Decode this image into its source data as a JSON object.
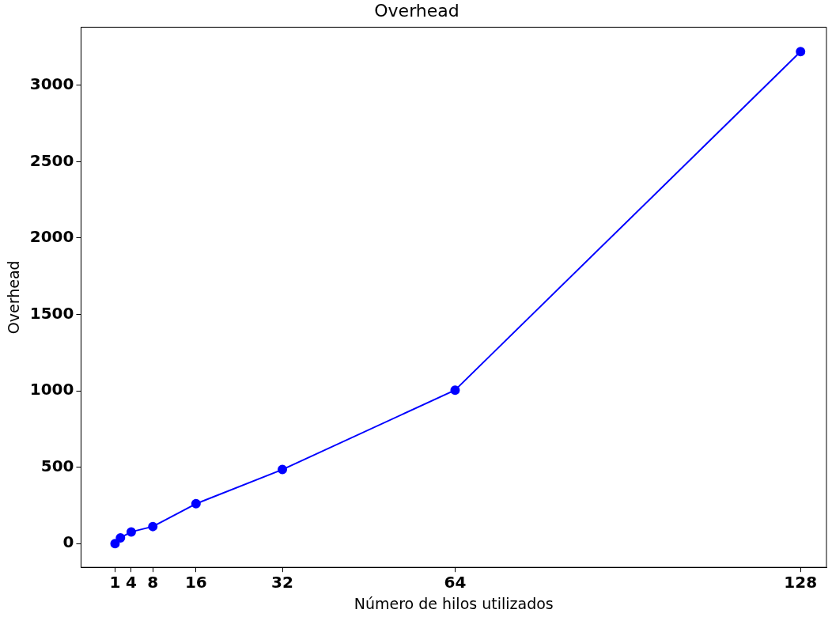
{
  "chart_data": {
    "type": "line",
    "title": "Overhead",
    "xlabel": "Número de hilos utilizados",
    "ylabel": "Overhead",
    "x": [
      1,
      2,
      4,
      8,
      16,
      32,
      64,
      128
    ],
    "series": [
      {
        "color": "#0000ff",
        "values": [
          0,
          38,
          77,
          112,
          261,
          485,
          1005,
          3220
        ]
      }
    ],
    "xlim": [
      -5.3,
      132.8
    ],
    "xticks": [
      1,
      4,
      8,
      16,
      32,
      64,
      128
    ],
    "ylim": [
      -155,
      3380
    ],
    "yticks": [
      0,
      500,
      1000,
      1500,
      2000,
      2500,
      3000
    ],
    "grid": false,
    "legend": false,
    "marker": "circle",
    "line_style": "solid"
  }
}
